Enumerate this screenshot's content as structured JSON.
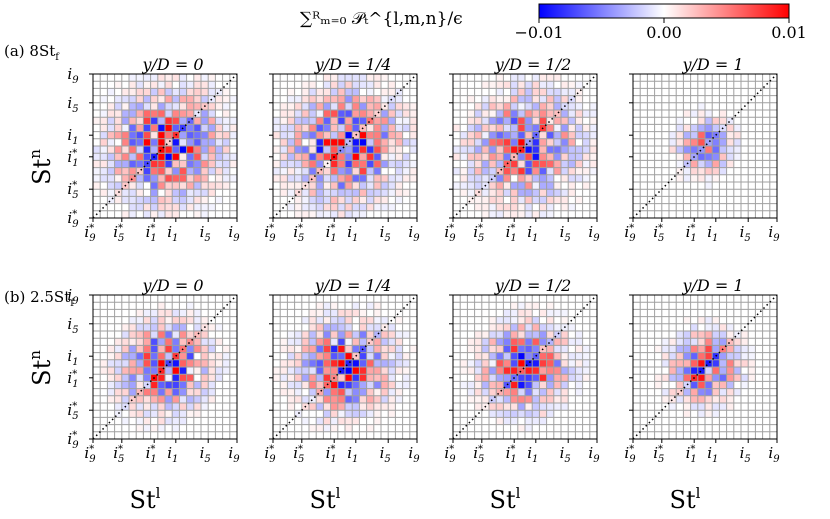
{
  "colorbar": {
    "label": "∑ᴿₘ₌₀ 𝒫ₜ^{l,m,n}/ϵ",
    "min": -0.01,
    "max": 0.01,
    "ticks": [
      "−0.01",
      "0.00",
      "0.01"
    ],
    "colors": {
      "neg": "#0000ff",
      "zero": "#ffffff",
      "pos": "#ff0000"
    }
  },
  "grid_color": "#a0a0a0",
  "rows": [
    {
      "row_label": "(a)  8St",
      "row_sub": "f"
    },
    {
      "row_label": "(b)  2.5St",
      "row_sub": "f"
    }
  ],
  "axis_labels": {
    "x": "St",
    "x_sup": "l",
    "y": "St",
    "y_sup": "n"
  },
  "tick_labels": [
    {
      "base": "i",
      "sub": "9",
      "star": true
    },
    {
      "base": "i",
      "sub": "5",
      "star": true
    },
    {
      "base": "i",
      "sub": "1",
      "star": true
    },
    {
      "base": "i",
      "sub": "1",
      "star": false
    },
    {
      "base": "i",
      "sub": "5",
      "star": false
    },
    {
      "base": "i",
      "sub": "9",
      "star": false
    }
  ],
  "chart_data": [
    {
      "type": "heatmap",
      "row": 0,
      "title": "y/D = 0",
      "amplitude": 1.0,
      "spread": 1.0,
      "x": [
        "i9*",
        "i5*",
        "i1*",
        "i1",
        "i5",
        "i9"
      ],
      "y": [
        "i9*",
        "i5*",
        "i1*",
        "i1",
        "i5",
        "i9"
      ],
      "range": [
        -0.01,
        0.01
      ],
      "diagonal": "dotted"
    },
    {
      "type": "heatmap",
      "row": 0,
      "title": "y/D = 1/4",
      "amplitude": 1.0,
      "spread": 1.0,
      "x": [
        "i9*",
        "i5*",
        "i1*",
        "i1",
        "i5",
        "i9"
      ],
      "y": [
        "i9*",
        "i5*",
        "i1*",
        "i1",
        "i5",
        "i9"
      ],
      "range": [
        -0.01,
        0.01
      ],
      "diagonal": "dotted"
    },
    {
      "type": "heatmap",
      "row": 0,
      "title": "y/D = 1/2",
      "amplitude": 0.85,
      "spread": 1.0,
      "x": [
        "i9*",
        "i5*",
        "i1*",
        "i1",
        "i5",
        "i9"
      ],
      "y": [
        "i9*",
        "i5*",
        "i1*",
        "i1",
        "i5",
        "i9"
      ],
      "range": [
        -0.01,
        0.01
      ],
      "diagonal": "dotted"
    },
    {
      "type": "heatmap",
      "row": 0,
      "title": "y/D = 1",
      "amplitude": 0.6,
      "spread": 0.55,
      "x": [
        "i9*",
        "i5*",
        "i1*",
        "i1",
        "i5",
        "i9"
      ],
      "y": [
        "i9*",
        "i5*",
        "i1*",
        "i1",
        "i5",
        "i9"
      ],
      "range": [
        -0.01,
        0.01
      ],
      "diagonal": "dotted"
    },
    {
      "type": "heatmap",
      "row": 1,
      "title": "y/D = 0",
      "amplitude": 1.0,
      "spread": 0.8,
      "x": [
        "i9*",
        "i5*",
        "i1*",
        "i1",
        "i5",
        "i9"
      ],
      "y": [
        "i9*",
        "i5*",
        "i1*",
        "i1",
        "i5",
        "i9"
      ],
      "range": [
        -0.01,
        0.01
      ],
      "diagonal": "dotted"
    },
    {
      "type": "heatmap",
      "row": 1,
      "title": "y/D = 1/4",
      "amplitude": 1.0,
      "spread": 0.85,
      "x": [
        "i9*",
        "i5*",
        "i1*",
        "i1",
        "i5",
        "i9"
      ],
      "y": [
        "i9*",
        "i5*",
        "i1*",
        "i1",
        "i5",
        "i9"
      ],
      "range": [
        -0.01,
        0.01
      ],
      "diagonal": "dotted"
    },
    {
      "type": "heatmap",
      "row": 1,
      "title": "y/D = 1/2",
      "amplitude": 0.95,
      "spread": 0.8,
      "x": [
        "i9*",
        "i5*",
        "i1*",
        "i1",
        "i5",
        "i9"
      ],
      "y": [
        "i9*",
        "i5*",
        "i1*",
        "i1",
        "i5",
        "i9"
      ],
      "range": [
        -0.01,
        0.01
      ],
      "diagonal": "dotted"
    },
    {
      "type": "heatmap",
      "row": 1,
      "title": "y/D = 1",
      "amplitude": 0.85,
      "spread": 0.65,
      "x": [
        "i9*",
        "i5*",
        "i1*",
        "i1",
        "i5",
        "i9"
      ],
      "y": [
        "i9*",
        "i5*",
        "i1*",
        "i1",
        "i5",
        "i9"
      ],
      "range": [
        -0.01,
        0.01
      ],
      "diagonal": "dotted"
    }
  ]
}
